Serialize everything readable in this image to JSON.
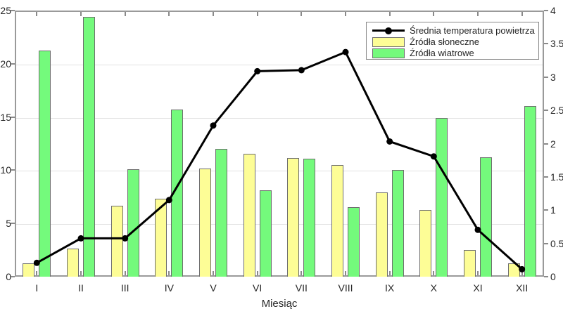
{
  "chart_data": {
    "type": "bar",
    "subtype": "grouped-bars-with-line-dual-axis",
    "title": "",
    "xlabel": "Miesiąc",
    "categories": [
      "I",
      "II",
      "III",
      "IV",
      "V",
      "VI",
      "VII",
      "VIII",
      "IX",
      "X",
      "XI",
      "XII"
    ],
    "left_axis": {
      "lim": [
        0,
        25
      ],
      "ticks": [
        0,
        5,
        10,
        15,
        20,
        25
      ]
    },
    "right_axis": {
      "lim": [
        0,
        4
      ],
      "ticks": [
        0,
        0.5,
        1,
        1.5,
        2,
        2.5,
        3,
        3.5,
        4
      ]
    },
    "grid": true,
    "legend_position": "top-right-inside",
    "series": [
      {
        "name": "Średnia temperatura powietrza",
        "type": "line",
        "axis": "left",
        "color": "#000000",
        "marker": "filled-circle",
        "values": [
          1.3,
          3.6,
          3.6,
          7.2,
          14.2,
          19.3,
          19.4,
          21.1,
          12.7,
          11.3,
          4.4,
          0.7
        ]
      },
      {
        "name": "Źródła słoneczne",
        "type": "bar",
        "axis": "right",
        "color": "#fdfd96",
        "values": [
          0.2,
          0.42,
          1.07,
          1.17,
          1.63,
          1.85,
          1.78,
          1.68,
          1.27,
          1.0,
          0.4,
          0.2
        ]
      },
      {
        "name": "Źródła wiatrowe",
        "type": "bar",
        "axis": "right",
        "color": "#74fa7c",
        "values": [
          3.4,
          3.9,
          1.61,
          2.51,
          1.92,
          1.3,
          1.77,
          1.05,
          1.6,
          2.38,
          1.79,
          2.56
        ]
      }
    ],
    "colors": {
      "bar_edge": "#6e6e6e",
      "grid": "#e2e2e2",
      "axis_border": "#9a9a9a",
      "text": "#262626",
      "line": "#000000"
    }
  }
}
